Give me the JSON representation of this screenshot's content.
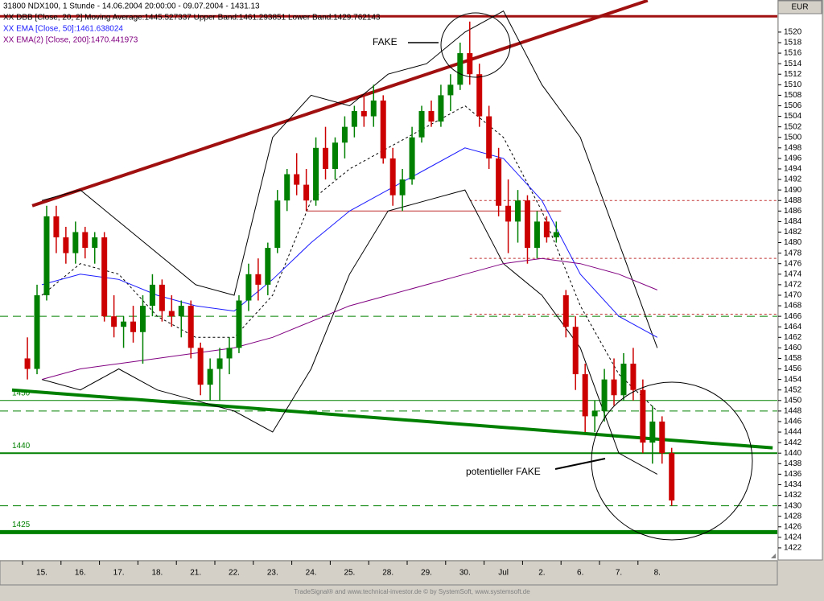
{
  "chart_data": {
    "type": "candlestick",
    "title": "31800  NDX100, 1 Stunde - 14.06.2004 20:00:00 - 09.07.2004 - 1431.13",
    "currency": "EUR",
    "footer": "TradeSignal® and www.technical-investor.de © by SystemSoft, www.systemsoft.de",
    "categories": [
      "15.",
      "16.",
      "17.",
      "18.",
      "21.",
      "22.",
      "23.",
      "24.",
      "25.",
      "28.",
      "29.",
      "30.",
      "Jul",
      "2.",
      "6.",
      "7.",
      "8."
    ],
    "candles_per_category": 4,
    "open": [
      1458,
      1456,
      1470,
      1485,
      1481,
      1478,
      1482,
      1479,
      1481,
      1466,
      1464,
      1465,
      1463,
      1468,
      1472,
      1467,
      1466,
      1468,
      1460,
      1453,
      1456,
      1458,
      1460,
      1469,
      1474,
      1472,
      1479,
      1488,
      1493,
      1491,
      1488,
      1498,
      1494,
      1499,
      1502,
      1505,
      1504,
      1507,
      1496,
      1489,
      1492,
      1500,
      1505,
      1503,
      1508,
      1510,
      1516,
      1512,
      1504,
      1496,
      1487,
      1484,
      1488,
      1479,
      1484,
      1481,
      1470,
      1464,
      1455,
      1447,
      1448,
      1454,
      1451,
      1457,
      1452,
      1442,
      1446,
      1440
    ],
    "high": [
      1462,
      1472,
      1487,
      1487,
      1483,
      1484,
      1483,
      1482,
      1482,
      1470,
      1466,
      1468,
      1470,
      1474,
      1473,
      1470,
      1469,
      1469,
      1461,
      1458,
      1460,
      1462,
      1470,
      1476,
      1477,
      1480,
      1490,
      1494,
      1497,
      1494,
      1500,
      1502,
      1500,
      1504,
      1506,
      1508,
      1510,
      1508,
      1498,
      1494,
      1502,
      1506,
      1507,
      1510,
      1512,
      1518,
      1522,
      1514,
      1506,
      1498,
      1492,
      1490,
      1489,
      1486,
      1485,
      1484,
      1471,
      1466,
      1457,
      1450,
      1456,
      1458,
      1459,
      1460,
      1454,
      1449,
      1447,
      1441
    ],
    "low": [
      1454,
      1455,
      1469,
      1478,
      1476,
      1476,
      1477,
      1476,
      1465,
      1462,
      1460,
      1461,
      1457,
      1466,
      1465,
      1464,
      1462,
      1458,
      1451,
      1450,
      1450,
      1455,
      1459,
      1467,
      1469,
      1470,
      1478,
      1486,
      1489,
      1486,
      1487,
      1492,
      1492,
      1496,
      1500,
      1502,
      1502,
      1495,
      1487,
      1486,
      1491,
      1499,
      1502,
      1502,
      1505,
      1509,
      1510,
      1502,
      1494,
      1485,
      1478,
      1480,
      1476,
      1477,
      1480,
      1480,
      1462,
      1452,
      1444,
      1444,
      1446,
      1449,
      1450,
      1450,
      1440,
      1438,
      1438,
      1430
    ],
    "close": [
      1456,
      1470,
      1485,
      1481,
      1478,
      1482,
      1479,
      1481,
      1466,
      1464,
      1465,
      1463,
      1468,
      1472,
      1467,
      1466,
      1468,
      1460,
      1453,
      1456,
      1458,
      1460,
      1469,
      1474,
      1472,
      1479,
      1488,
      1493,
      1491,
      1488,
      1498,
      1494,
      1499,
      1502,
      1505,
      1504,
      1507,
      1496,
      1489,
      1492,
      1500,
      1505,
      1503,
      1508,
      1510,
      1516,
      1512,
      1504,
      1496,
      1487,
      1484,
      1488,
      1479,
      1484,
      1481,
      1482,
      1464,
      1455,
      1447,
      1448,
      1454,
      1451,
      1457,
      1452,
      1442,
      1446,
      1440,
      1431
    ],
    "up_color": "#008000",
    "down_color": "#cc0000",
    "indicators": [
      {
        "name": "XX DBB [Close, 20, 2] Moving Average:1445.527337 Upper Band:1461.293851 Lower Band:1429.762143",
        "color": "#000000",
        "parts": [
          {
            "dash": "3 3",
            "values": [
              1470,
              1476,
              1474,
              1466,
              1462,
              1462,
              1470,
              1488,
              1494,
              1498,
              1502,
              1506,
              1500,
              1486,
              1468,
              1455,
              1448
            ]
          },
          {
            "dash": "none",
            "values": [
              1488,
              1490,
              1484,
              1478,
              1472,
              1470,
              1500,
              1508,
              1506,
              1512,
              1514,
              1520,
              1524,
              1510,
              1500,
              1480,
              1460
            ]
          },
          {
            "dash": "none",
            "values": [
              1454,
              1452,
              1456,
              1452,
              1450,
              1448,
              1444,
              1456,
              1474,
              1486,
              1488,
              1490,
              1476,
              1470,
              1460,
              1440,
              1436
            ]
          }
        ]
      },
      {
        "name": "XX EMA [Close, 50]:1461.638024",
        "color": "#1a1aff",
        "parts": [
          {
            "dash": "none",
            "values": [
              1472,
              1474,
              1473,
              1470,
              1468,
              1467,
              1473,
              1480,
              1486,
              1490,
              1494,
              1498,
              1496,
              1488,
              1474,
              1466,
              1462
            ]
          }
        ]
      },
      {
        "name": "XX EMA(2) [Close, 200]:1470.441973",
        "color": "#800080",
        "parts": [
          {
            "dash": "none",
            "values": [
              1454,
              1456,
              1457,
              1458,
              1459,
              1460,
              1462,
              1465,
              1468,
              1470,
              1472,
              1474,
              1476,
              1477,
              1476,
              1474,
              1471
            ]
          }
        ]
      }
    ],
    "levels": [
      {
        "value": 1523,
        "color": "#a01010",
        "width": 3,
        "dash": "none",
        "start": -4
      },
      {
        "value": 1450,
        "color": "#008000",
        "width": 1,
        "dash": "none",
        "start": -4,
        "labeled": true
      },
      {
        "value": 1440,
        "color": "#008000",
        "width": 2,
        "dash": "none",
        "start": -4,
        "labeled": true
      },
      {
        "value": 1425,
        "color": "#008000",
        "width": 5,
        "dash": "none",
        "start": -4,
        "labeled": true
      },
      {
        "value": 1466,
        "color": "#008000",
        "width": 1,
        "dash": "10 6",
        "start": -4
      },
      {
        "value": 1448,
        "color": "#008000",
        "width": 1,
        "dash": "10 6",
        "start": -4
      },
      {
        "value": 1430,
        "color": "#008000",
        "width": 1,
        "dash": "10 6",
        "start": -4
      },
      {
        "value": 1488,
        "color": "#c03030",
        "width": 1,
        "dash": "3 3",
        "start": 46
      },
      {
        "value": 1477,
        "color": "#c03030",
        "width": 1,
        "dash": "3 3",
        "start": 46
      },
      {
        "value": 1466.4,
        "color": "#c03030",
        "width": 1,
        "dash": "3 3",
        "start": 46
      }
    ],
    "segments": [
      {
        "color": "#a01010",
        "width": 4,
        "from": [
          0.5,
          1487
        ],
        "to": [
          64.5,
          1526
        ]
      },
      {
        "color": "#008000",
        "width": 4,
        "from": [
          -1.6,
          1452
        ],
        "to": [
          77.5,
          1441
        ]
      },
      {
        "color": "#c03030",
        "width": 1,
        "from": [
          29,
          1486
        ],
        "to": [
          55.5,
          1486
        ]
      }
    ],
    "annotations": [
      "FAKE",
      "potentieller FAKE"
    ],
    "ylim": [
      1419.7,
      1526.1
    ],
    "yticks": [
      1422,
      1424,
      1426,
      1428,
      1430,
      1432,
      1434,
      1436,
      1438,
      1440,
      1442,
      1444,
      1446,
      1448,
      1450,
      1452,
      1454,
      1456,
      1458,
      1460,
      1462,
      1464,
      1466,
      1468,
      1470,
      1472,
      1474,
      1476,
      1478,
      1480,
      1482,
      1484,
      1486,
      1488,
      1490,
      1492,
      1494,
      1496,
      1498,
      1500,
      1502,
      1504,
      1506,
      1508,
      1510,
      1512,
      1514,
      1516,
      1518,
      1520
    ]
  }
}
